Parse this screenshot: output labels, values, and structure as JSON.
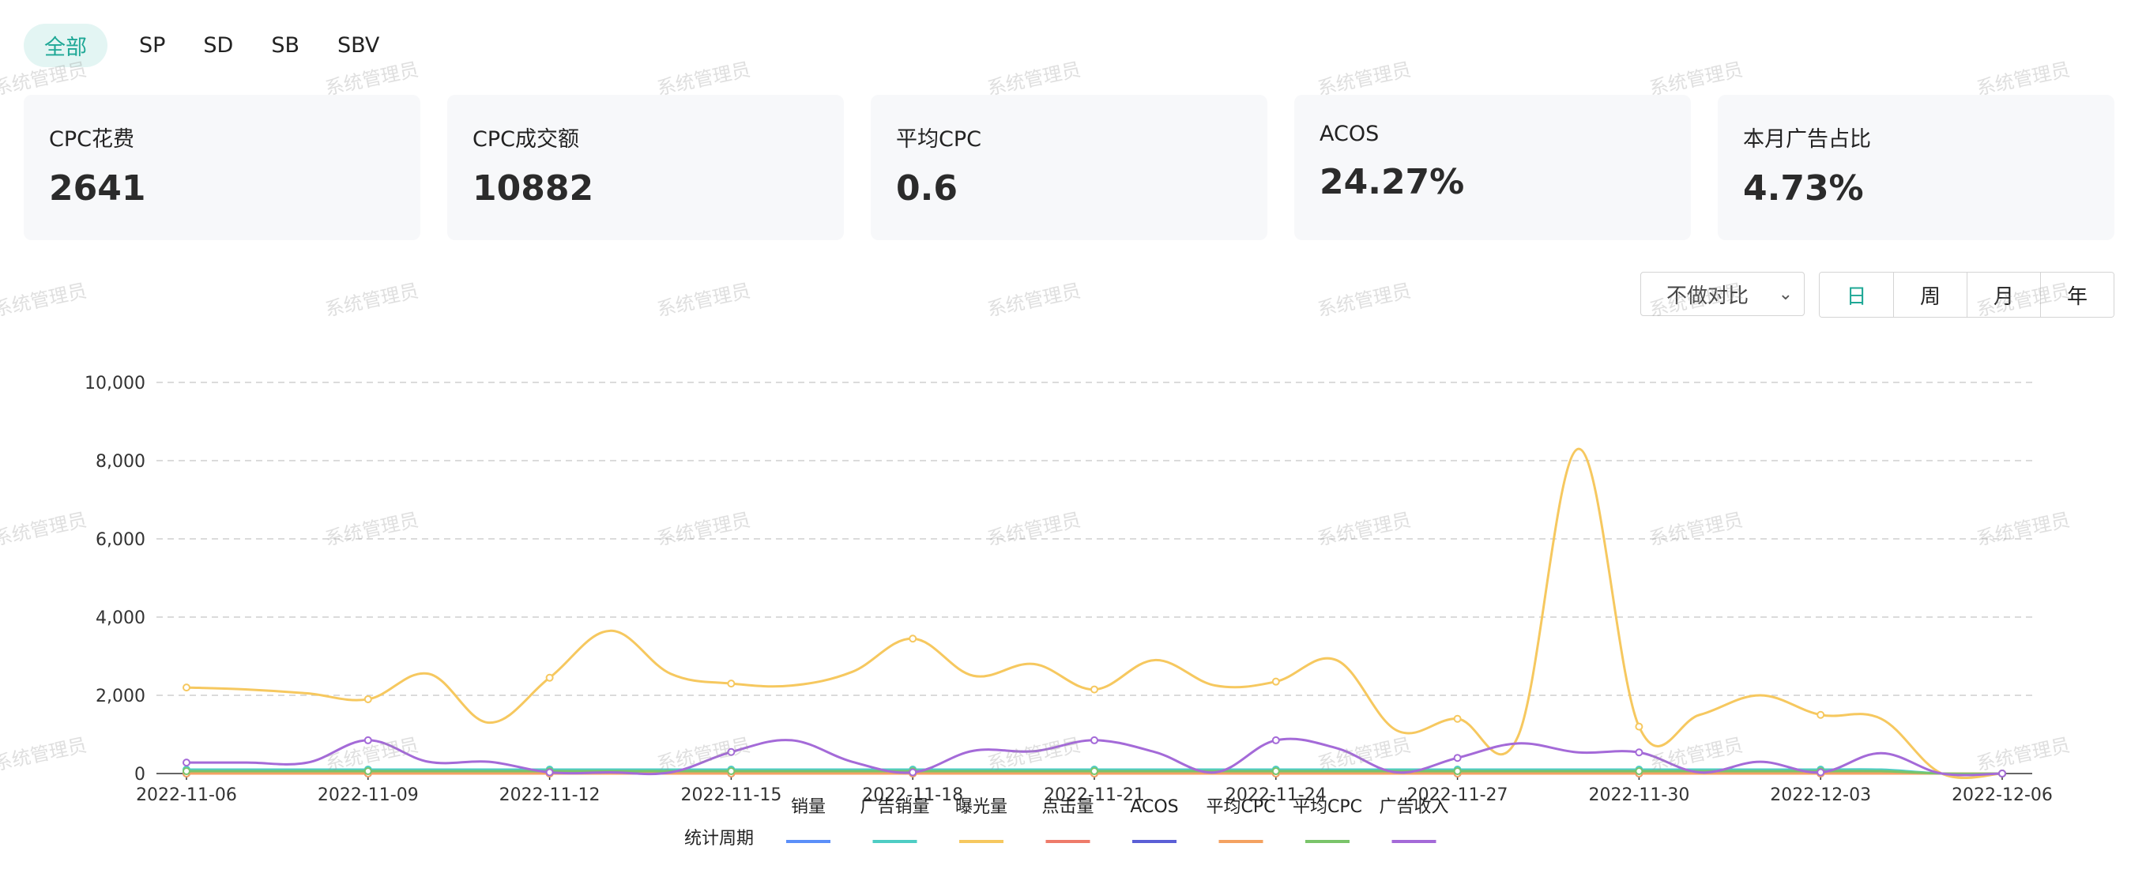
{
  "tabs": [
    "全部",
    "SP",
    "SD",
    "SB",
    "SBV"
  ],
  "active_tab": 0,
  "watermark_text": "系统管理员",
  "kpi_cards": [
    {
      "label": "CPC花费",
      "value": "2641"
    },
    {
      "label": "CPC成交额",
      "value": "10882"
    },
    {
      "label": "平均CPC",
      "value": "0.6"
    },
    {
      "label": "ACOS",
      "value": "24.27%"
    },
    {
      "label": "本月广告占比",
      "value": "4.73%"
    }
  ],
  "controls": {
    "compare_select": "不做对比",
    "period_buttons": [
      "日",
      "周",
      "月",
      "年"
    ],
    "active_period": 0
  },
  "chart_data": {
    "type": "line",
    "x": [
      "2022-11-06",
      "2022-11-07",
      "2022-11-08",
      "2022-11-09",
      "2022-11-10",
      "2022-11-11",
      "2022-11-12",
      "2022-11-13",
      "2022-11-14",
      "2022-11-15",
      "2022-11-16",
      "2022-11-17",
      "2022-11-18",
      "2022-11-19",
      "2022-11-20",
      "2022-11-21",
      "2022-11-22",
      "2022-11-23",
      "2022-11-24",
      "2022-11-25",
      "2022-11-26",
      "2022-11-27",
      "2022-11-28",
      "2022-11-29",
      "2022-11-30",
      "2022-12-01",
      "2022-12-02",
      "2022-12-03",
      "2022-12-04",
      "2022-12-05",
      "2022-12-06"
    ],
    "x_ticks": [
      "2022-11-06",
      "2022-11-09",
      "2022-11-12",
      "2022-11-15",
      "2022-11-18",
      "2022-11-21",
      "2022-11-24",
      "2022-11-27",
      "2022-11-30",
      "2022-12-03",
      "2022-12-06"
    ],
    "y_ticks": [
      "0",
      "2,000",
      "4,000",
      "6,000",
      "8,000",
      "10,000"
    ],
    "ylim": [
      0,
      10000
    ],
    "grid": true,
    "legend_position": "bottom",
    "legend_title": "统计周期",
    "series": [
      {
        "name": "销量",
        "color": "#5b8ff9",
        "values": [
          5,
          5,
          5,
          5,
          5,
          5,
          5,
          5,
          5,
          5,
          5,
          5,
          5,
          5,
          5,
          5,
          5,
          5,
          5,
          5,
          5,
          5,
          5,
          5,
          5,
          5,
          5,
          5,
          5,
          0,
          0
        ]
      },
      {
        "name": "广告销量",
        "color": "#4ecdc4",
        "values": [
          100,
          100,
          100,
          100,
          100,
          100,
          100,
          100,
          100,
          100,
          100,
          100,
          100,
          100,
          100,
          100,
          100,
          100,
          100,
          100,
          100,
          100,
          100,
          100,
          100,
          100,
          100,
          100,
          100,
          0,
          0
        ]
      },
      {
        "name": "曝光量",
        "color": "#f6c85f",
        "values": [
          2200,
          2150,
          2050,
          1900,
          2550,
          1300,
          2450,
          3650,
          2550,
          2300,
          2250,
          2600,
          3450,
          2500,
          2800,
          2150,
          2900,
          2250,
          2350,
          2900,
          1100,
          1400,
          950,
          8300,
          1200,
          1500,
          2000,
          1500,
          1400,
          0,
          0
        ]
      },
      {
        "name": "点击量",
        "color": "#ee7b6a",
        "values": [
          10,
          10,
          10,
          10,
          10,
          10,
          10,
          10,
          10,
          10,
          10,
          10,
          10,
          10,
          10,
          10,
          10,
          10,
          10,
          10,
          10,
          10,
          10,
          10,
          10,
          10,
          10,
          10,
          10,
          0,
          0
        ]
      },
      {
        "name": "ACOS",
        "color": "#5b5fd6",
        "values": [
          0,
          0,
          0,
          0,
          0,
          0,
          0,
          0,
          0,
          0,
          0,
          0,
          0,
          0,
          0,
          0,
          0,
          0,
          0,
          0,
          0,
          0,
          0,
          0,
          0,
          0,
          0,
          0,
          0,
          0,
          0
        ]
      },
      {
        "name": "平均CPC",
        "color": "#f4a261",
        "values": [
          1,
          1,
          1,
          1,
          1,
          1,
          1,
          1,
          1,
          1,
          1,
          1,
          1,
          1,
          1,
          1,
          1,
          1,
          1,
          1,
          1,
          1,
          1,
          1,
          1,
          1,
          1,
          1,
          1,
          0,
          0
        ]
      },
      {
        "name": "平均CPC",
        "color": "#7ac46a",
        "values": [
          60,
          60,
          60,
          60,
          60,
          60,
          60,
          60,
          60,
          60,
          60,
          60,
          60,
          60,
          60,
          60,
          60,
          60,
          60,
          60,
          60,
          60,
          60,
          60,
          60,
          60,
          60,
          60,
          60,
          0,
          0
        ]
      },
      {
        "name": "广告收入",
        "color": "#a46ad8",
        "values": [
          280,
          280,
          280,
          850,
          300,
          300,
          30,
          30,
          30,
          550,
          850,
          300,
          30,
          580,
          570,
          850,
          550,
          30,
          850,
          650,
          30,
          400,
          770,
          540,
          540,
          30,
          300,
          30,
          520,
          0,
          0
        ]
      }
    ]
  }
}
